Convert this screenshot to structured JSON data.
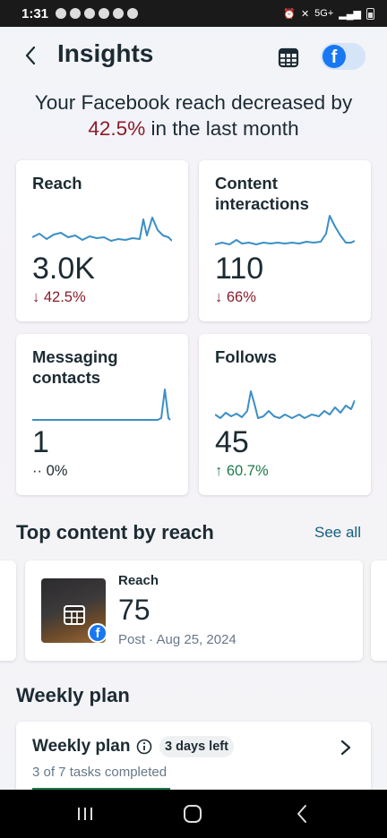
{
  "status_bar": {
    "time": "1:31",
    "signal": "5G+"
  },
  "header": {
    "title": "Insights",
    "back_icon": "back-arrow-icon",
    "calendar_icon": "calendar-icon",
    "platform_toggle": "facebook"
  },
  "summary": {
    "prefix": "Your Facebook reach decreased by",
    "percent": "42.5%",
    "suffix": "in the last month"
  },
  "stats": [
    {
      "label": "Reach",
      "value": "3.0K",
      "delta": "42.5%",
      "direction": "down",
      "delta_icon": "↓"
    },
    {
      "label": "Content interactions",
      "value": "110",
      "delta": "66%",
      "direction": "down",
      "delta_icon": "↓"
    },
    {
      "label": "Messaging contacts",
      "value": "1",
      "delta": "0%",
      "direction": "flat",
      "delta_icon": "··"
    },
    {
      "label": "Follows",
      "value": "45",
      "delta": "60.7%",
      "direction": "up",
      "delta_icon": "↑"
    }
  ],
  "top_content": {
    "title": "Top content by reach",
    "see_all": "See all",
    "item": {
      "metric_label": "Reach",
      "metric_value": "75",
      "meta": "Post · Aug 25, 2024"
    }
  },
  "weekly_plan": {
    "section_title": "Weekly plan",
    "card_title": "Weekly plan",
    "days_left": "3 days left",
    "progress_text": "3 of 7 tasks completed",
    "tasks_completed": 3,
    "tasks_total": 7
  },
  "colors": {
    "accent_blue": "#1877f2",
    "down_red": "#8a1c2b",
    "up_green": "#1d7a4b",
    "link_teal": "#14607d",
    "sparkline": "#3b8fc4"
  }
}
